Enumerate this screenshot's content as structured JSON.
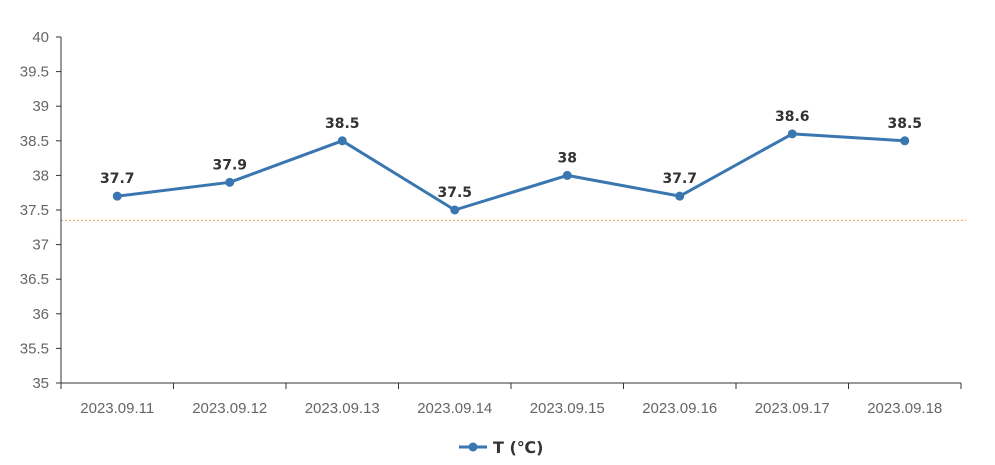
{
  "chart_data": {
    "type": "line",
    "categories": [
      "2023.09.11",
      "2023.09.12",
      "2023.09.13",
      "2023.09.14",
      "2023.09.15",
      "2023.09.16",
      "2023.09.17",
      "2023.09.18"
    ],
    "series": [
      {
        "name": "T (℃)",
        "values": [
          37.7,
          37.9,
          38.5,
          37.5,
          38,
          37.7,
          38.6,
          38.5
        ],
        "color": "#3a76b0"
      }
    ],
    "data_labels": [
      "37.7",
      "37.9",
      "38.5",
      "37.5",
      "38",
      "37.7",
      "38.6",
      "38.5"
    ],
    "y_ticks": [
      "35",
      "35.5",
      "36",
      "36.5",
      "37",
      "37.5",
      "38",
      "38.5",
      "39",
      "39.5",
      "40"
    ],
    "ylim": [
      35,
      40
    ],
    "reference_line": {
      "value": 37.35,
      "color": "#e8a060",
      "style": "dotted"
    },
    "grid": false,
    "legend": {
      "placement": "bottom-center"
    },
    "title": "",
    "xlabel": "",
    "ylabel": ""
  }
}
